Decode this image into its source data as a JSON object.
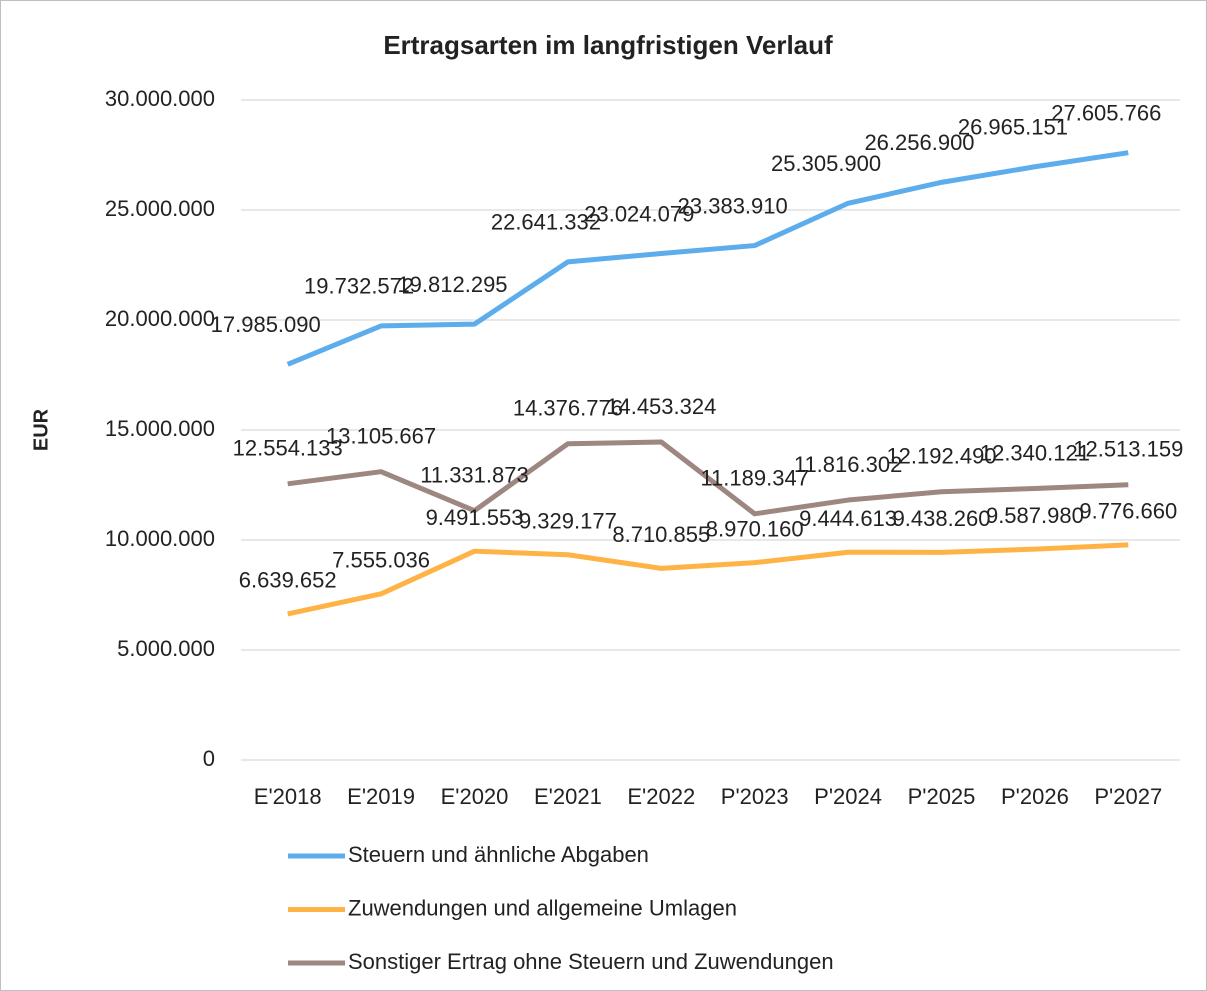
{
  "chart_data": {
    "type": "line",
    "title": "Ertragsarten im langfristigen Verlauf",
    "y_label": "EUR",
    "categories": [
      "E'2018",
      "E'2019",
      "E'2020",
      "E'2021",
      "E'2022",
      "P'2023",
      "P'2024",
      "P'2025",
      "P'2026",
      "P'2027"
    ],
    "series": [
      {
        "name": "Steuern und ähnliche Abgaben",
        "color": "#5dadec",
        "values": [
          17985090,
          19732572,
          19812295,
          22641332,
          23024079,
          23383910,
          25305900,
          26256900,
          26965151,
          27605766
        ],
        "value_labels": [
          "17.985.090",
          "19.732.572",
          "19.812.295",
          "22.641.332",
          "23.024.079",
          "23.383.910",
          "25.305.900",
          "26.256.900",
          "26.965.151",
          "27.605.766"
        ]
      },
      {
        "name": "Zuwendungen und allgemeine Umlagen",
        "color": "#ffb347",
        "values": [
          6639652,
          7555036,
          9491553,
          9329177,
          8710855,
          8970160,
          9444613,
          9438260,
          9587980,
          9776660
        ],
        "value_labels": [
          "6.639.652",
          "7.555.036",
          "9.491.553",
          "9.329.177",
          "8.710.855",
          "8.970.160",
          "9.444.613",
          "9.438.260",
          "9.587.980",
          "9.776.660"
        ]
      },
      {
        "name": "Sonstiger Ertrag ohne Steuern und Zuwendungen",
        "color": "#9e8780",
        "values": [
          12554133,
          13105667,
          11331873,
          14376776,
          14453324,
          11189347,
          11816302,
          12192490,
          12340121,
          12513159
        ],
        "value_labels": [
          "12.554.133",
          "13.105.667",
          "11.331.873",
          "14.376.776",
          "14.453.324",
          "11.189.347",
          "11.816.302",
          "12.192.490",
          "12.340.121",
          "12.513.159"
        ]
      }
    ],
    "ylim": [
      0,
      30000000
    ],
    "yticks": [
      0,
      {
        "value": 5000000,
        "label": "5.000.000"
      },
      {
        "value": 10000000,
        "label": "10.000.000"
      },
      {
        "value": 15000000,
        "label": "15.000.000"
      },
      {
        "value": 20000000,
        "label": "20.000.000"
      },
      {
        "value": 25000000,
        "label": "25.000.000"
      },
      {
        "value": 30000000,
        "label": "30.000.000"
      }
    ],
    "grid": true,
    "legend": "bottom"
  }
}
